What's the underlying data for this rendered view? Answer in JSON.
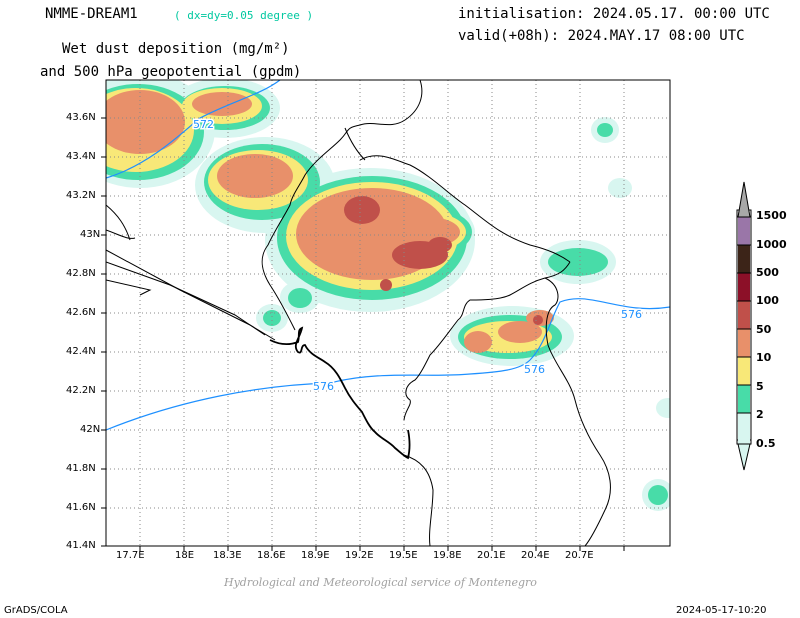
{
  "header": {
    "model": "NMME-DREAM1",
    "resolution": "( dx=dy=0.05 degree )",
    "title_line1": "Wet dust deposition (mg/m²)",
    "title_line2": "and 500 hPa geopotential (gpdm)",
    "init": "initialisation: 2024.05.17. 00:00 UTC",
    "valid": "valid(+08h): 2024.MAY.17 08:00 UTC"
  },
  "axes": {
    "lon_labels": [
      "17.7E",
      "18E",
      "18.3E",
      "18.6E",
      "18.9E",
      "19.2E",
      "19.5E",
      "19.8E",
      "20.1E",
      "20.4E",
      "20.7E"
    ],
    "lat_labels": [
      "43.6N",
      "43.4N",
      "43.2N",
      "43N",
      "42.8N",
      "42.6N",
      "42.4N",
      "42.2N",
      "42N",
      "41.8N",
      "41.6N",
      "41.4N"
    ]
  },
  "contours": {
    "label_572": "572",
    "label_576a": "576",
    "label_576b": "576",
    "label_576c": "576",
    "line_color": "#1e90ff"
  },
  "colorbar": {
    "levels": [
      "0.5",
      "2",
      "5",
      "10",
      "50",
      "100",
      "500",
      "1000",
      "1500"
    ],
    "colors": [
      "#d8f6f0",
      "#48dca8",
      "#f8e878",
      "#e8906a",
      "#c0504a",
      "#8c1028",
      "#3c2418",
      "#9a76a8",
      "#a8a8a8"
    ]
  },
  "footer": {
    "credit": "Hydrological and Meteorological service of Montenegro",
    "left": "GrADS/COLA",
    "right": "2024-05-17-10:20"
  }
}
